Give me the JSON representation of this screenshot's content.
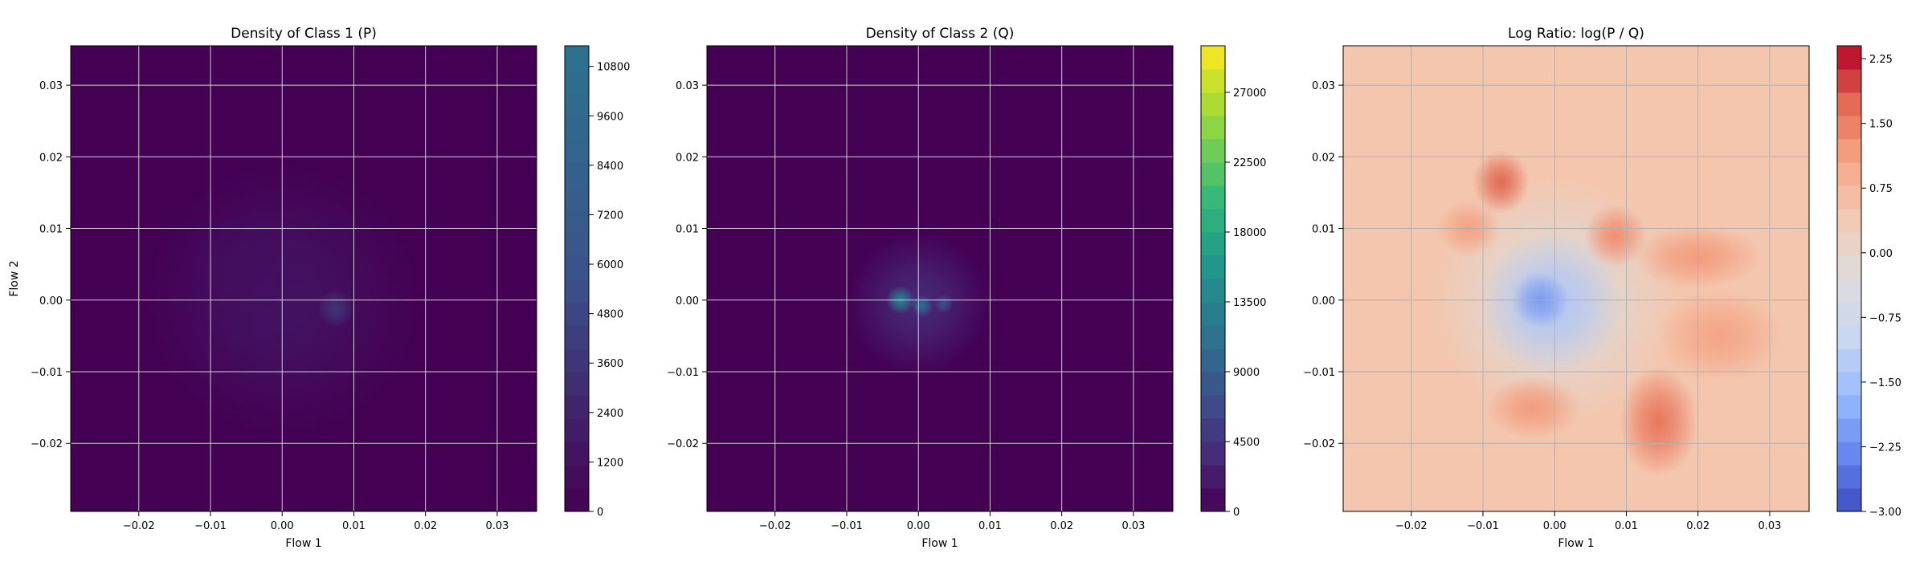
{
  "chart_data": [
    {
      "type": "heatmap",
      "title": "Density of Class 1 (P)",
      "xlabel": "Flow 1",
      "ylabel": "Flow 2",
      "xlim": [
        -0.0295,
        0.0355
      ],
      "ylim": [
        -0.0295,
        0.0355
      ],
      "xticks": [
        "−0.02",
        "−0.01",
        "0.00",
        "0.01",
        "0.02",
        "0.03"
      ],
      "yticks": [
        "−0.02",
        "−0.01",
        "0.00",
        "0.01",
        "0.02",
        "0.03"
      ],
      "grid": true,
      "colormap": "viridis",
      "background_color": "#440154",
      "colorbar": {
        "vmin": 0,
        "vmax": 11300,
        "ticks": [
          "0",
          "1200",
          "2400",
          "3600",
          "4800",
          "6000",
          "7200",
          "8400",
          "9600",
          "10800"
        ],
        "colors": [
          "#440154",
          "#3b528b",
          "#2c728e"
        ]
      },
      "blobs": [
        {
          "x": 0.0,
          "y": 0.0,
          "sx": 0.0085,
          "sy": 0.0085,
          "level": 0.12
        },
        {
          "x": -0.004,
          "y": 0.004,
          "sx": 0.004,
          "sy": 0.004,
          "level": 0.08
        },
        {
          "x": 0.0075,
          "y": -0.0012,
          "sx": 0.0012,
          "sy": 0.0012,
          "level": 0.32
        }
      ]
    },
    {
      "type": "heatmap",
      "title": "Density of Class 2 (Q)",
      "xlabel": "Flow 1",
      "ylabel": "",
      "xlim": [
        -0.0295,
        0.0355
      ],
      "ylim": [
        -0.0295,
        0.0355
      ],
      "xticks": [
        "−0.02",
        "−0.01",
        "0.00",
        "0.01",
        "0.02",
        "0.03"
      ],
      "yticks": [
        "−0.02",
        "−0.01",
        "0.00",
        "0.01",
        "0.02",
        "0.03"
      ],
      "grid": true,
      "colormap": "viridis",
      "background_color": "#440154",
      "colorbar": {
        "vmin": 0,
        "vmax": 30000,
        "ticks": [
          "0",
          "4500",
          "9000",
          "13500",
          "18000",
          "22500",
          "27000"
        ],
        "colors": [
          "#440154",
          "#482878",
          "#3e4989",
          "#31688e",
          "#26828e",
          "#1f9e89",
          "#35b779",
          "#6ece58",
          "#b5de2b",
          "#fde725"
        ]
      },
      "blobs": [
        {
          "x": 0.0,
          "y": -0.0005,
          "sx": 0.0045,
          "sy": 0.0045,
          "level": 0.12
        },
        {
          "x": -0.0025,
          "y": 0.0,
          "sx": 0.0009,
          "sy": 0.0009,
          "level": 0.45
        },
        {
          "x": 0.0005,
          "y": -0.0008,
          "sx": 0.0007,
          "sy": 0.0007,
          "level": 0.35
        },
        {
          "x": 0.0035,
          "y": -0.0005,
          "sx": 0.0006,
          "sy": 0.0006,
          "level": 0.25
        }
      ]
    },
    {
      "type": "heatmap",
      "title": "Log Ratio: log(P / Q)",
      "xlabel": "Flow 1",
      "ylabel": "",
      "xlim": [
        -0.0295,
        0.0355
      ],
      "ylim": [
        -0.0295,
        0.0355
      ],
      "xticks": [
        "−0.02",
        "−0.01",
        "0.00",
        "0.01",
        "0.02",
        "0.03"
      ],
      "yticks": [
        "−0.02",
        "−0.01",
        "0.00",
        "0.01",
        "0.02",
        "0.03"
      ],
      "grid": true,
      "colormap": "coolwarm",
      "background_color": "#f4c6ad",
      "colorbar": {
        "vmin": -3.0,
        "vmax": 2.4,
        "ticks": [
          "−3.00",
          "−2.25",
          "−1.50",
          "−0.75",
          "0.00",
          "0.75",
          "1.50",
          "2.25"
        ],
        "colors": [
          "#3b4cc0",
          "#6788ee",
          "#9abbff",
          "#c9d7f0",
          "#dddcdc",
          "#f2cbb7",
          "#f7a889",
          "#e36a53",
          "#b40426"
        ]
      },
      "blobs": [
        {
          "x": 0.0,
          "y": 0.0,
          "sx": 0.008,
          "sy": 0.008,
          "color": "#dcdcdc"
        },
        {
          "x": -0.0005,
          "y": -0.0005,
          "sx": 0.0045,
          "sy": 0.0045,
          "color": "#aec4f5"
        },
        {
          "x": -0.002,
          "y": 0.0,
          "sx": 0.0018,
          "sy": 0.0018,
          "color": "#7d9cf0"
        },
        {
          "x": -0.0075,
          "y": 0.0165,
          "sx": 0.0018,
          "sy": 0.002,
          "color": "#e06a53"
        },
        {
          "x": 0.0145,
          "y": -0.017,
          "sx": 0.0025,
          "sy": 0.0035,
          "color": "#e8765c"
        },
        {
          "x": 0.0085,
          "y": 0.009,
          "sx": 0.002,
          "sy": 0.002,
          "color": "#f08e70"
        },
        {
          "x": 0.02,
          "y": 0.006,
          "sx": 0.004,
          "sy": 0.002,
          "color": "#f39b7d"
        },
        {
          "x": -0.003,
          "y": -0.015,
          "sx": 0.003,
          "sy": 0.002,
          "color": "#f29b7d"
        },
        {
          "x": 0.023,
          "y": -0.005,
          "sx": 0.004,
          "sy": 0.003,
          "color": "#f4a486"
        },
        {
          "x": -0.012,
          "y": 0.01,
          "sx": 0.002,
          "sy": 0.0018,
          "color": "#f3a283"
        }
      ]
    }
  ]
}
